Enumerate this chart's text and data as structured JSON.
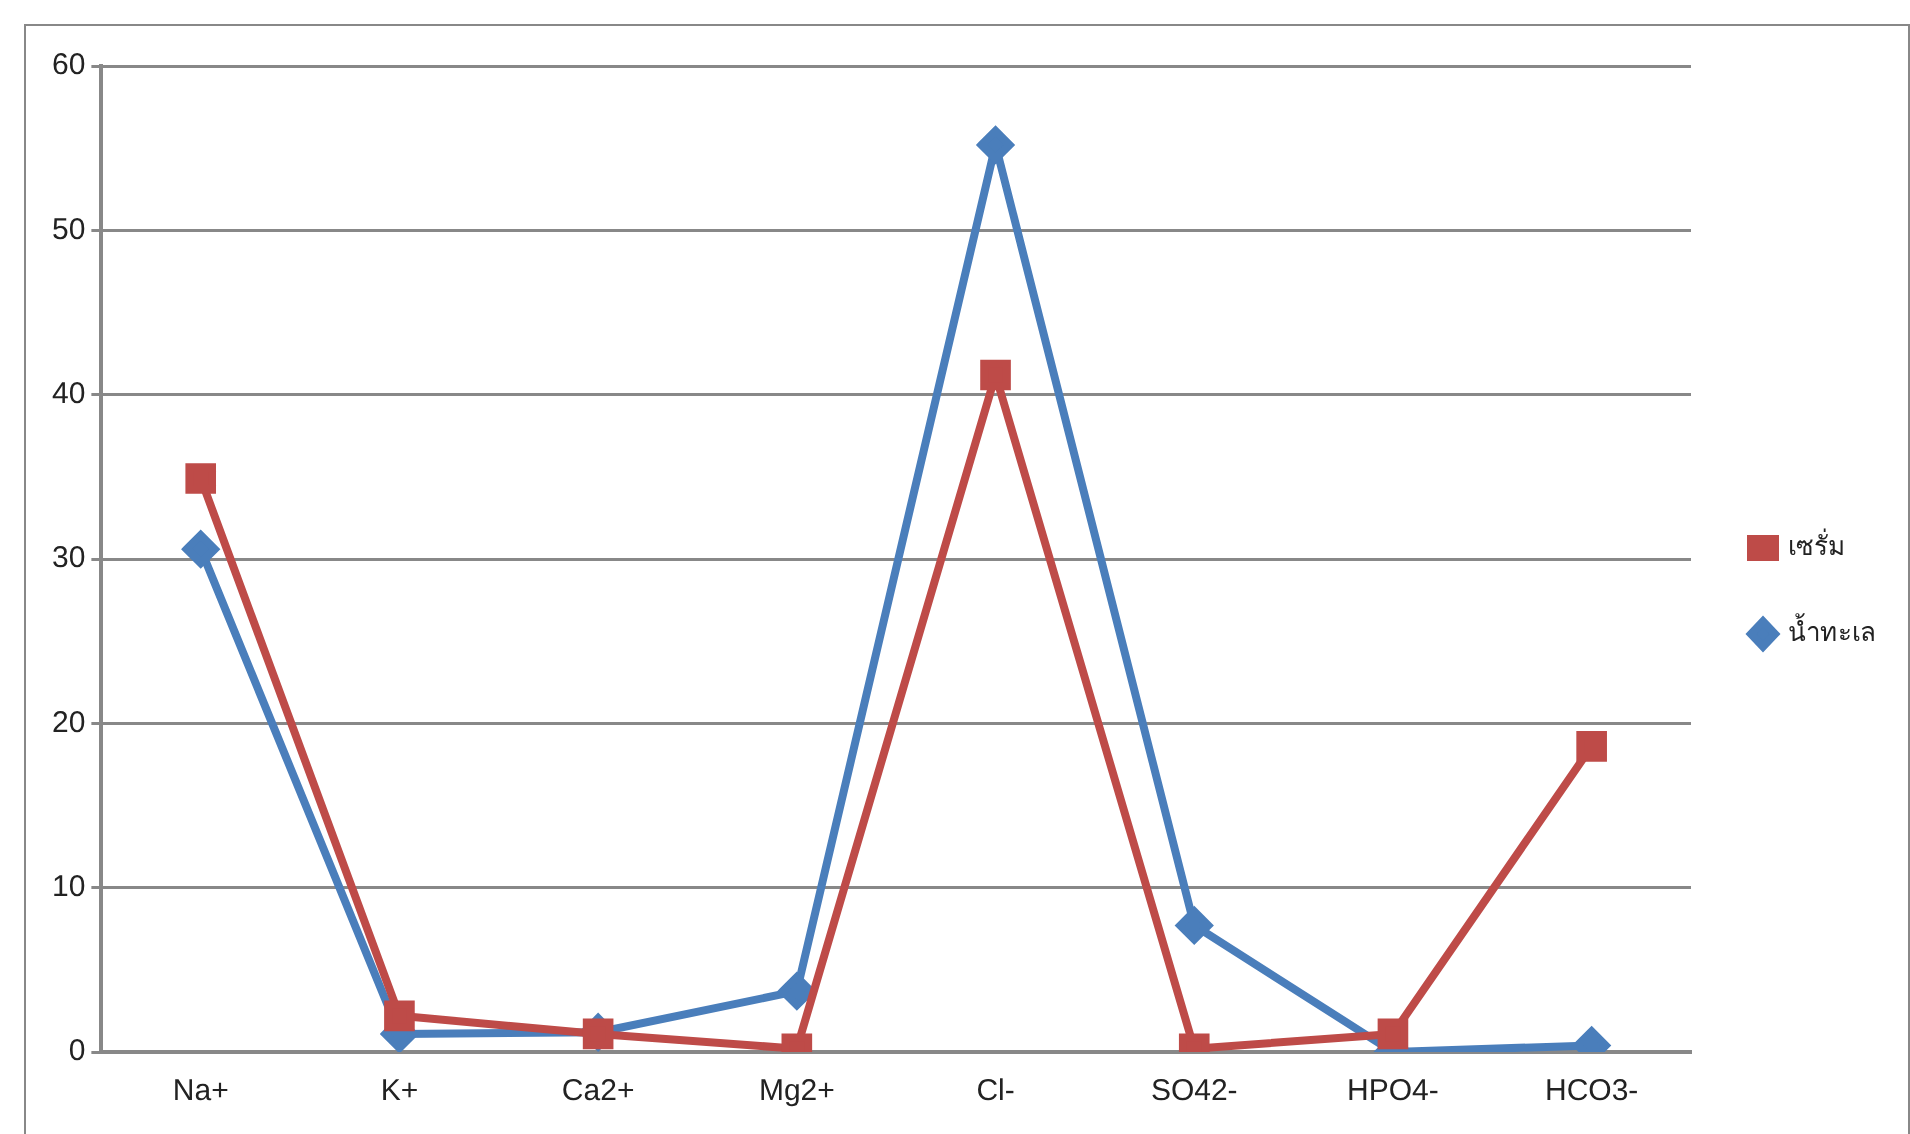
{
  "chart_data": {
    "type": "line",
    "categories": [
      "Na+",
      "K+",
      "Ca2+",
      "Mg2+",
      "Cl-",
      "SO42-",
      "HPO4-",
      "HCO3-"
    ],
    "series": [
      {
        "name": "น้ำทะเล",
        "color": "#4a7ebb",
        "marker": "diamond",
        "values": [
          30.6,
          1.1,
          1.2,
          3.7,
          55.2,
          7.7,
          0,
          0.4
        ]
      },
      {
        "name": "เซรั่ม",
        "color": "#be4b48",
        "marker": "square",
        "values": [
          34.9,
          2.2,
          1.1,
          0.2,
          41.2,
          0.2,
          1.1,
          18.6
        ]
      }
    ],
    "ylim": [
      0,
      60
    ],
    "yticks": [
      0,
      10,
      20,
      30,
      40,
      50,
      60
    ],
    "grid": "y",
    "legend": "right",
    "line_style": "solid"
  }
}
